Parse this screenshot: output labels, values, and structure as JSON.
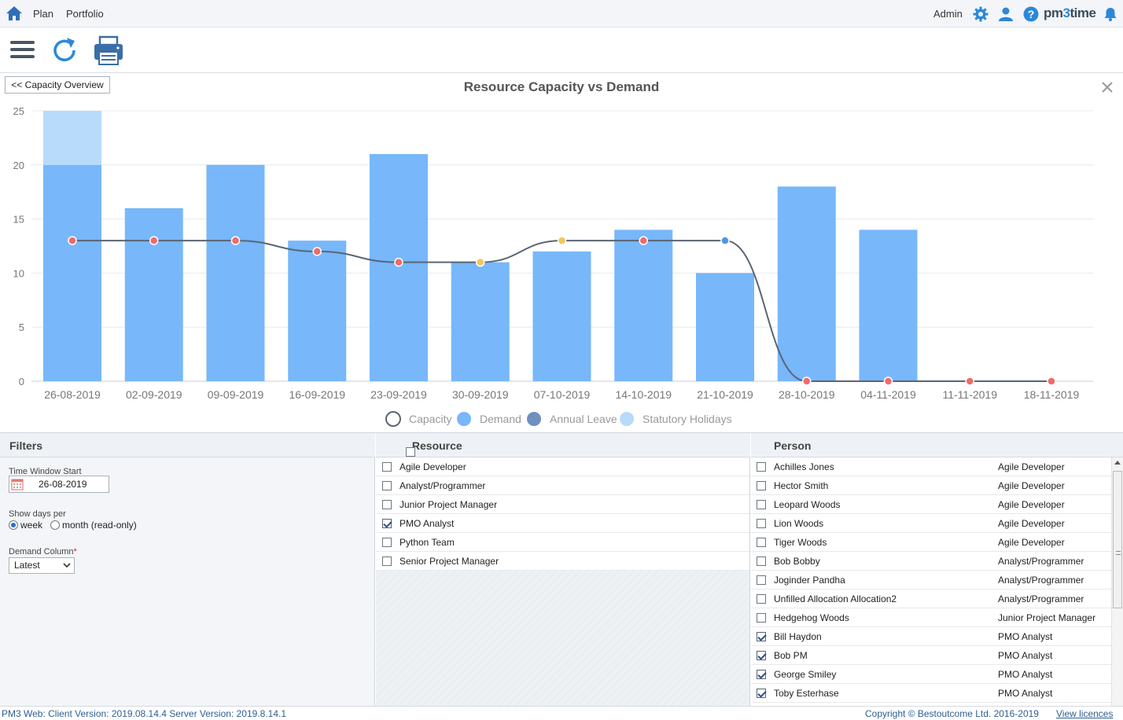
{
  "topnav": {
    "plan": "Plan",
    "portfolio": "Portfolio",
    "user": "Admin",
    "brand_pre": "pm",
    "brand_three": "3",
    "brand_post": "time"
  },
  "chart": {
    "back_label": "<< Capacity Overview",
    "title": "Resource Capacity vs Demand"
  },
  "chart_data": {
    "type": "bar",
    "title": "Resource Capacity vs Demand",
    "categories": [
      "26-08-2019",
      "02-09-2019",
      "09-09-2019",
      "16-09-2019",
      "23-09-2019",
      "30-09-2019",
      "07-10-2019",
      "14-10-2019",
      "21-10-2019",
      "28-10-2019",
      "04-11-2019",
      "11-11-2019",
      "18-11-2019"
    ],
    "ylim": [
      0,
      25
    ],
    "yticks": [
      0,
      5,
      10,
      15,
      20,
      25
    ],
    "series": [
      {
        "name": "Capacity",
        "kind": "line",
        "values": [
          13,
          13,
          13,
          12,
          11,
          11,
          13,
          13,
          13,
          0,
          0,
          0,
          0
        ],
        "point_status": [
          "red",
          "red",
          "red",
          "red",
          "red",
          "yellow",
          "yellow",
          "red",
          "blue",
          "red",
          "red",
          "red",
          "red"
        ]
      },
      {
        "name": "Demand",
        "kind": "bar",
        "values": [
          20,
          16,
          20,
          13,
          21,
          11,
          12,
          14,
          10,
          18,
          14,
          0,
          0
        ]
      },
      {
        "name": "Annual Leave",
        "kind": "bar",
        "values": [
          0,
          0,
          0,
          0,
          0,
          0,
          0,
          0,
          0,
          0,
          0,
          0,
          0
        ]
      },
      {
        "name": "Statutory Holidays",
        "kind": "bar",
        "values": [
          5,
          0,
          0,
          0,
          0,
          0,
          0,
          0,
          0,
          0,
          0,
          0,
          0
        ]
      }
    ],
    "legend": [
      "Capacity",
      "Demand",
      "Annual Leave",
      "Statutory Holidays"
    ],
    "colors": {
      "demand": "#77b7fa",
      "holiday": "#b8dafb",
      "leave": "#6f8fbd",
      "line": "#5b6573",
      "red": "#f06a6a",
      "yellow": "#f3c55a",
      "blue": "#4f95e8",
      "grid": "#e6e9ed"
    }
  },
  "filters": {
    "title": "Filters",
    "time_window_label": "Time Window Start",
    "time_window_value": "26-08-2019",
    "show_days_label": "Show days per",
    "opt_week": "week",
    "opt_month": "month (read-only)",
    "demand_col_label": "Demand Column",
    "demand_col_value": "Latest"
  },
  "resource": {
    "title": "Resource",
    "items": [
      {
        "label": "Agile Developer",
        "checked": false
      },
      {
        "label": "Analyst/Programmer",
        "checked": false
      },
      {
        "label": "Junior Project Manager",
        "checked": false
      },
      {
        "label": "PMO Analyst",
        "checked": true
      },
      {
        "label": "Python Team",
        "checked": false
      },
      {
        "label": "Senior Project Manager",
        "checked": false
      }
    ]
  },
  "person": {
    "title": "Person",
    "items": [
      {
        "name": "Achilles Jones",
        "role": "Agile Developer",
        "checked": false
      },
      {
        "name": "Hector Smith",
        "role": "Agile Developer",
        "checked": false
      },
      {
        "name": "Leopard Woods",
        "role": "Agile Developer",
        "checked": false
      },
      {
        "name": "Lion Woods",
        "role": "Agile Developer",
        "checked": false
      },
      {
        "name": "Tiger Woods",
        "role": "Agile Developer",
        "checked": false
      },
      {
        "name": "Bob Bobby",
        "role": "Analyst/Programmer",
        "checked": false
      },
      {
        "name": "Joginder Pandha",
        "role": "Analyst/Programmer",
        "checked": false
      },
      {
        "name": "Unfilled Allocation Allocation2",
        "role": "Analyst/Programmer",
        "checked": false
      },
      {
        "name": "Hedgehog Woods",
        "role": "Junior Project Manager",
        "checked": false
      },
      {
        "name": "Bill Haydon",
        "role": "PMO Analyst",
        "checked": true
      },
      {
        "name": "Bob PM",
        "role": "PMO Analyst",
        "checked": true
      },
      {
        "name": "George Smiley",
        "role": "PMO Analyst",
        "checked": true
      },
      {
        "name": "Toby Esterhase",
        "role": "PMO Analyst",
        "checked": true
      }
    ]
  },
  "footer": {
    "version": "PM3 Web: Client Version: 2019.08.14.4 Server Version: 2019.8.14.1",
    "copyright": "Copyright © Bestoutcome Ltd. 2016-2019",
    "licences": "View licences"
  }
}
